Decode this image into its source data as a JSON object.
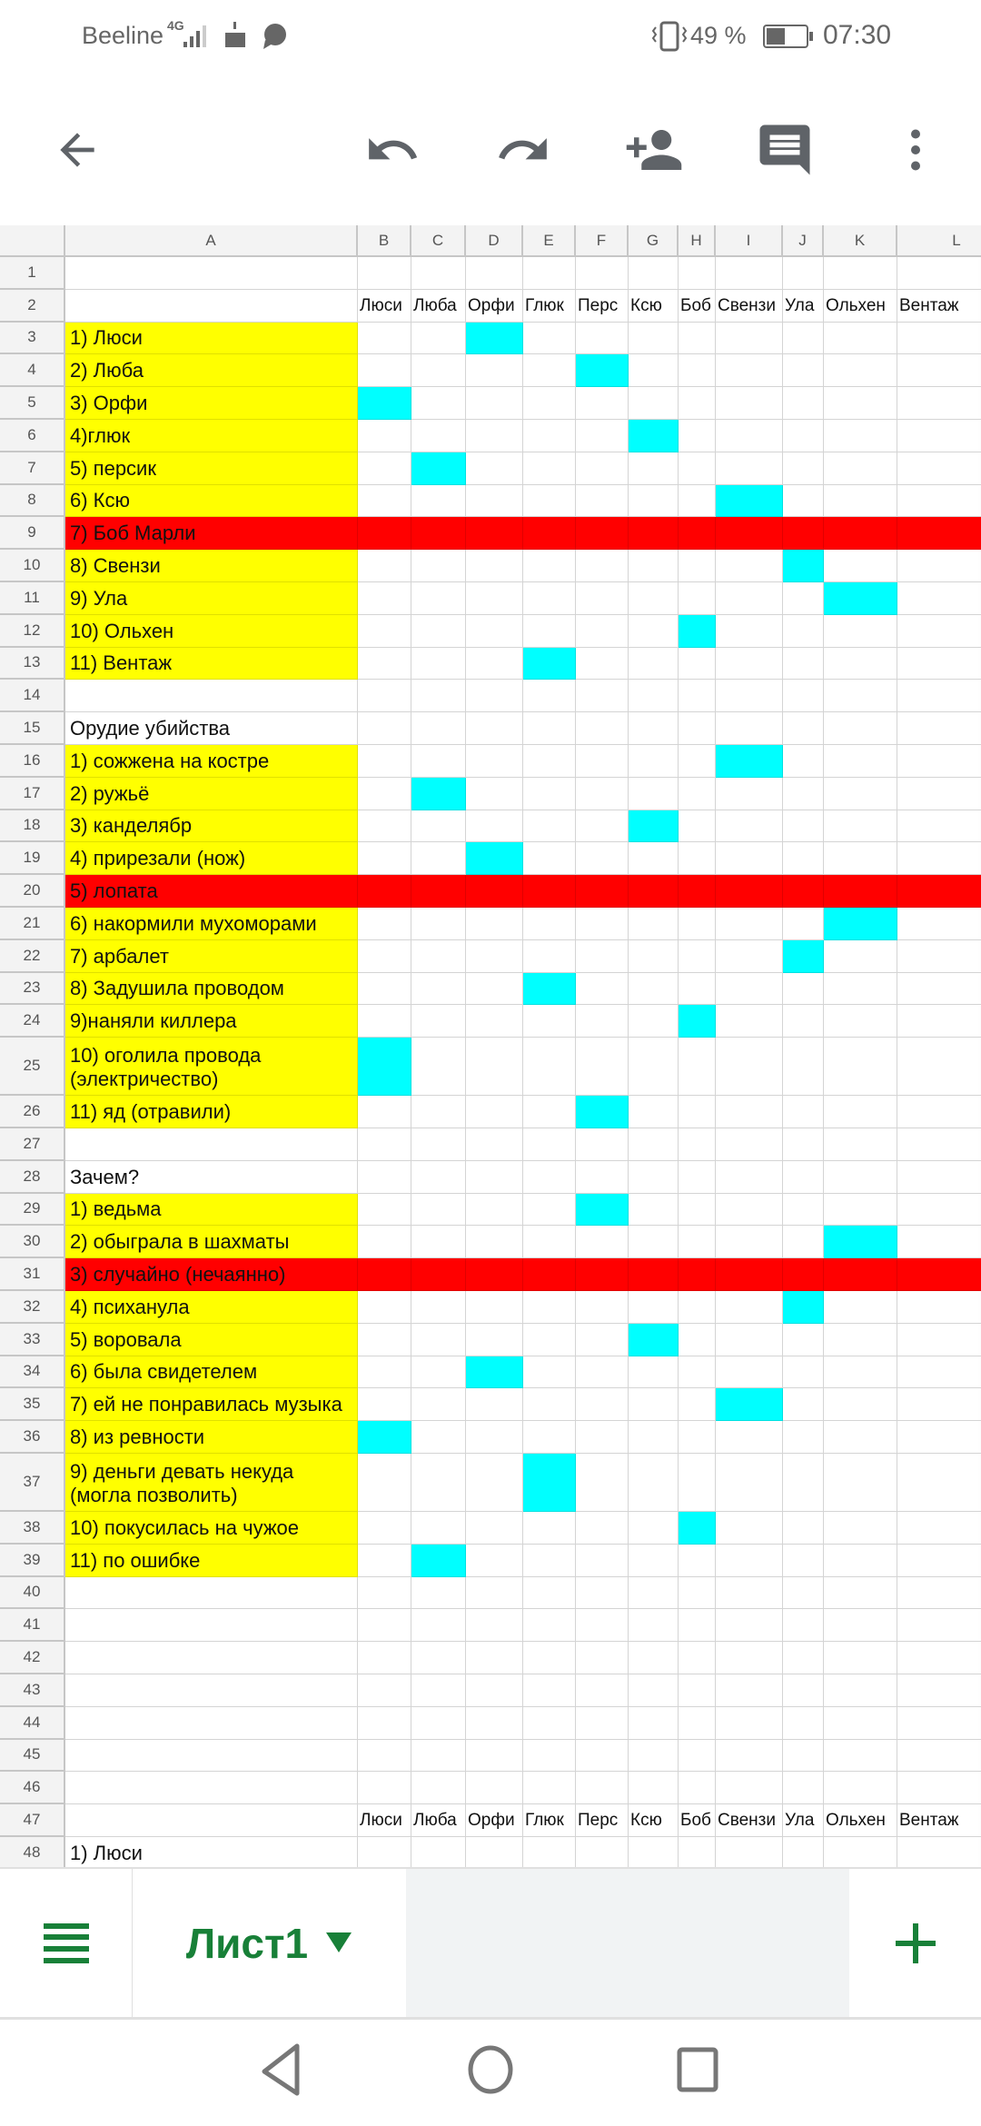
{
  "status_bar": {
    "carrier": "Beeline",
    "network": "4G",
    "battery": "49 %",
    "time": "07:30"
  },
  "toolbar": {
    "icons": [
      "back-arrow-icon",
      "undo-icon",
      "redo-icon",
      "add-person-icon",
      "comment-icon",
      "more-vert-icon"
    ]
  },
  "colors": {
    "yellow": "#ffff00",
    "cyan": "#00ffff",
    "red": "#ff0000",
    "accent_green": "#188038"
  },
  "sheet": {
    "columns": [
      "A",
      "B",
      "C",
      "D",
      "E",
      "F",
      "G",
      "H",
      "I",
      "J",
      "K",
      "L"
    ],
    "names_header": [
      "Люси",
      "Люба",
      "Орфи",
      "Глюк",
      "Перс",
      "Ксю",
      "Боб",
      "Свензи",
      "Ула",
      "Ольхен",
      "Вентаж"
    ],
    "rows": [
      {
        "n": "1",
        "a": ""
      },
      {
        "n": "2",
        "a": "",
        "names": true
      },
      {
        "n": "3",
        "a": "1) Люси",
        "fill": "yellow",
        "mark": "D"
      },
      {
        "n": "4",
        "a": "2) Люба",
        "fill": "yellow",
        "mark": "F"
      },
      {
        "n": "5",
        "a": "3) Орфи",
        "fill": "yellow",
        "mark": "B"
      },
      {
        "n": "6",
        "a": "4)глюк",
        "fill": "yellow",
        "mark": "G"
      },
      {
        "n": "7",
        "a": "5) персик",
        "fill": "yellow",
        "mark": "C"
      },
      {
        "n": "8",
        "a": "6) Ксю",
        "fill": "yellow",
        "mark": "I"
      },
      {
        "n": "9",
        "a": "7) Боб Марли",
        "fill": "red",
        "full": true
      },
      {
        "n": "10",
        "a": "8) Свензи",
        "fill": "yellow",
        "mark": "J"
      },
      {
        "n": "11",
        "a": "9) Ула",
        "fill": "yellow",
        "mark": "K"
      },
      {
        "n": "12",
        "a": "10) Ольхен",
        "fill": "yellow",
        "mark": "H"
      },
      {
        "n": "13",
        "a": "11) Вентаж",
        "fill": "yellow",
        "mark": "E"
      },
      {
        "n": "14",
        "a": ""
      },
      {
        "n": "15",
        "a": "Орудие убийства"
      },
      {
        "n": "16",
        "a": "1) сожжена на костре",
        "fill": "yellow",
        "mark": "I"
      },
      {
        "n": "17",
        "a": "2) ружьё",
        "fill": "yellow",
        "mark": "C"
      },
      {
        "n": "18",
        "a": "3) канделябр",
        "fill": "yellow",
        "mark": "G"
      },
      {
        "n": "19",
        "a": "4) прирезали (нож)",
        "fill": "yellow",
        "mark": "D"
      },
      {
        "n": "20",
        "a": "5) лопата",
        "fill": "red",
        "full": true
      },
      {
        "n": "21",
        "a": "6) накормили мухоморами",
        "fill": "yellow",
        "mark": "K"
      },
      {
        "n": "22",
        "a": "7) арбалет",
        "fill": "yellow",
        "mark": "J"
      },
      {
        "n": "23",
        "a": "8) Задушила проводом",
        "fill": "yellow",
        "mark": "E"
      },
      {
        "n": "24",
        "a": "9)наняли киллера",
        "fill": "yellow",
        "mark": "H"
      },
      {
        "n": "25",
        "a": "10) оголила провода\n(электричество)",
        "fill": "yellow",
        "mark": "B",
        "tall": true
      },
      {
        "n": "26",
        "a": "11) яд (отравили)",
        "fill": "yellow",
        "mark": "F"
      },
      {
        "n": "27",
        "a": ""
      },
      {
        "n": "28",
        "a": "Зачем?"
      },
      {
        "n": "29",
        "a": "1) ведьма",
        "fill": "yellow",
        "mark": "F"
      },
      {
        "n": "30",
        "a": "2) обыграла в шахматы",
        "fill": "yellow",
        "mark": "K"
      },
      {
        "n": "31",
        "a": "3) случайно (нечаянно)",
        "fill": "red",
        "full": true
      },
      {
        "n": "32",
        "a": "4) психанула",
        "fill": "yellow",
        "mark": "J"
      },
      {
        "n": "33",
        "a": "5) воровала",
        "fill": "yellow",
        "mark": "G"
      },
      {
        "n": "34",
        "a": "6) была свидетелем",
        "fill": "yellow",
        "mark": "D"
      },
      {
        "n": "35",
        "a": "7) ей не понравилась музыка",
        "fill": "yellow",
        "mark": "I"
      },
      {
        "n": "36",
        "a": "8) из ревности",
        "fill": "yellow",
        "mark": "B"
      },
      {
        "n": "37",
        "a": "9) деньги девать некуда\n(могла позволить)",
        "fill": "yellow",
        "mark": "E",
        "tall": true
      },
      {
        "n": "38",
        "a": "10) покусилась на чужое",
        "fill": "yellow",
        "mark": "H"
      },
      {
        "n": "39",
        "a": "11) по ошибке",
        "fill": "yellow",
        "mark": "C"
      },
      {
        "n": "40",
        "a": ""
      },
      {
        "n": "41",
        "a": ""
      },
      {
        "n": "42",
        "a": ""
      },
      {
        "n": "43",
        "a": ""
      },
      {
        "n": "44",
        "a": ""
      },
      {
        "n": "45",
        "a": ""
      },
      {
        "n": "46",
        "a": ""
      },
      {
        "n": "47",
        "a": "",
        "names": true
      },
      {
        "n": "48",
        "a": "1) Люси"
      }
    ]
  },
  "bottom_bar": {
    "sheet_tab": "Лист1"
  },
  "nav_bar": {
    "icons": [
      "back-triangle-icon",
      "home-circle-icon",
      "recents-square-icon"
    ]
  }
}
